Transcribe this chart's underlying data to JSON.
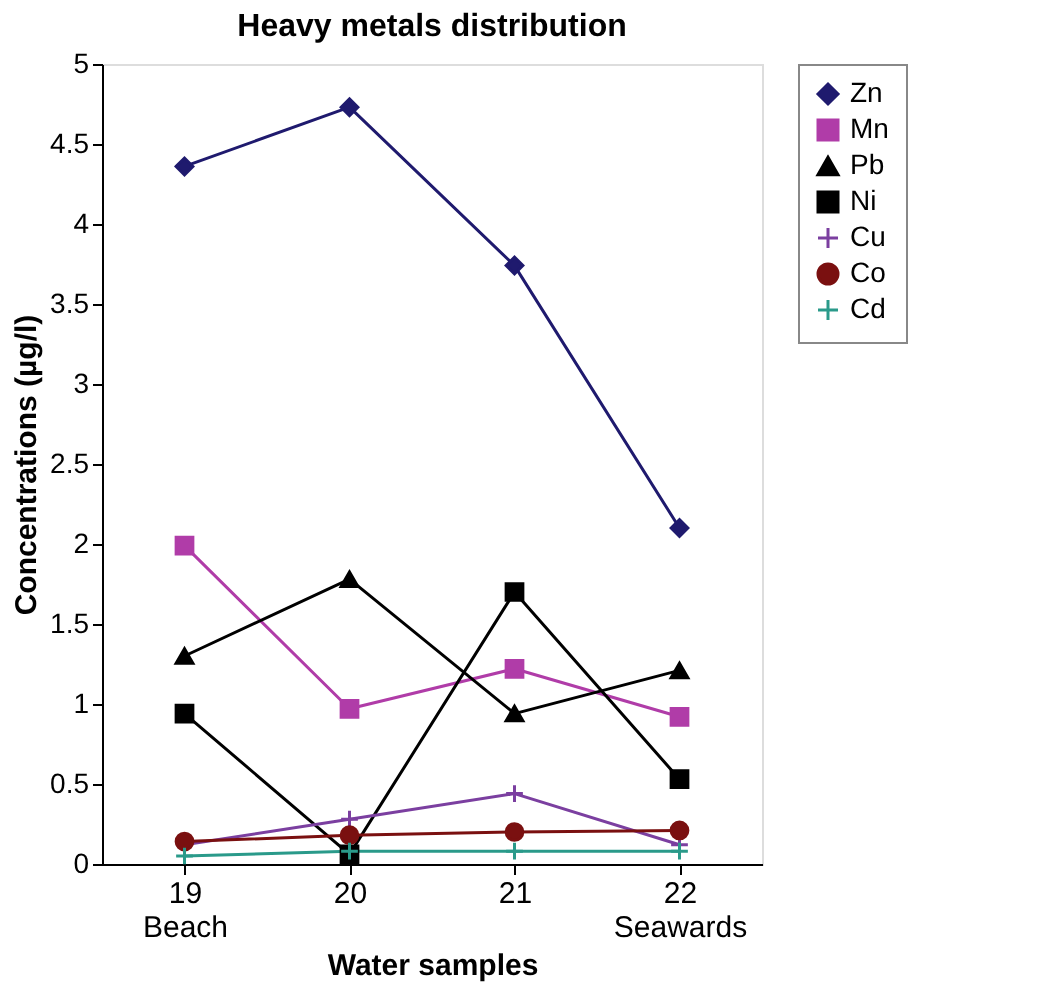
{
  "chart_data": {
    "type": "line",
    "title": "Heavy metals distribution",
    "xlabel": "Water samples",
    "ylabel": "Concentrations (µg/l)",
    "categories": [
      "19\nBeach",
      "20",
      "21",
      "22\nSeawards"
    ],
    "ylim": [
      0,
      5
    ],
    "yticks": [
      0,
      0.5,
      1,
      1.5,
      2,
      2.5,
      3,
      3.5,
      4,
      4.5,
      5
    ],
    "grid": false,
    "legend": "right",
    "line_style": "solid",
    "series": [
      {
        "name": "Zn",
        "color": "#1f1a6e",
        "marker": "diamond",
        "values": [
          4.36,
          4.73,
          3.74,
          2.1
        ]
      },
      {
        "name": "Mn",
        "color": "#b03ca8",
        "marker": "square",
        "values": [
          1.99,
          0.97,
          1.22,
          0.92
        ]
      },
      {
        "name": "Pb",
        "color": "#000000",
        "marker": "triangle",
        "values": [
          1.3,
          1.78,
          0.94,
          1.21
        ]
      },
      {
        "name": "Ni",
        "color": "#000000",
        "marker": "square",
        "values": [
          0.94,
          0.06,
          1.7,
          0.53
        ]
      },
      {
        "name": "Cu",
        "color": "#7b3fa0",
        "marker": "cross",
        "values": [
          0.12,
          0.28,
          0.44,
          0.12
        ]
      },
      {
        "name": "Co",
        "color": "#7a1010",
        "marker": "circle",
        "values": [
          0.14,
          0.18,
          0.2,
          0.21
        ]
      },
      {
        "name": "Cd",
        "color": "#2a9a8a",
        "marker": "cross",
        "values": [
          0.05,
          0.08,
          0.08,
          0.08
        ]
      }
    ]
  }
}
